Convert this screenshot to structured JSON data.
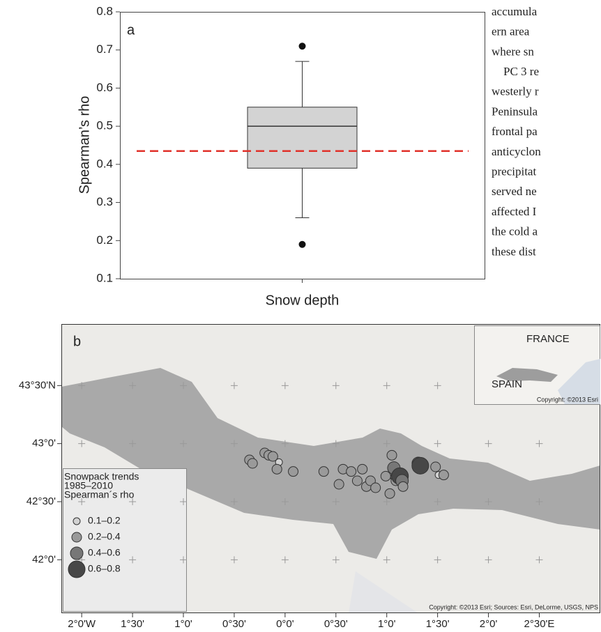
{
  "chart_data": [
    {
      "type": "box",
      "panel_label": "a",
      "ylabel": "Spearman’s rho",
      "categories": [
        "Snow depth"
      ],
      "whisker_low": [
        0.26
      ],
      "q1": [
        0.39
      ],
      "median": [
        0.5
      ],
      "q3": [
        0.55
      ],
      "whisker_high": [
        0.67
      ],
      "outliers": [
        [
          0.71,
          0.19
        ]
      ],
      "reference_line": 0.435,
      "reference_color": "#e0312a",
      "box_color": "#d3d3d3",
      "ylim": [
        0.1,
        0.8
      ],
      "yticks": [
        0.1,
        0.2,
        0.3,
        0.4,
        0.5,
        0.6,
        0.7,
        0.8
      ]
    },
    {
      "type": "map",
      "panel_label": "b",
      "xlim": [
        -2.2,
        3.1
      ],
      "ylim": [
        41.54,
        44.03
      ],
      "xticks": [
        {
          "value": -2,
          "label": "2°0'W"
        },
        {
          "value": -1.5,
          "label": "1°30'"
        },
        {
          "value": -1,
          "label": "1°0'"
        },
        {
          "value": -0.5,
          "label": "0°30'"
        },
        {
          "value": 0,
          "label": "0°0'"
        },
        {
          "value": 0.5,
          "label": "0°30'"
        },
        {
          "value": 1,
          "label": "1°0'"
        },
        {
          "value": 1.5,
          "label": "1°30'"
        },
        {
          "value": 2,
          "label": "2°0'"
        },
        {
          "value": 2.5,
          "label": "2°30'E"
        }
      ],
      "yticks": [
        {
          "value": 43.5,
          "label": "43°30'N"
        },
        {
          "value": 43,
          "label": "43°0'"
        },
        {
          "value": 42.5,
          "label": "42°30'"
        },
        {
          "value": 42,
          "label": "42°0'"
        }
      ],
      "legend_title": [
        "Snowpack trends",
        "1985–2010",
        "Spearman´s rho"
      ],
      "classes": [
        {
          "label": "0.1–0.2",
          "color": "#d2d2d2"
        },
        {
          "label": "0.2–0.4",
          "color": "#9a9a9a"
        },
        {
          "label": "0.4–0.6",
          "color": "#777777"
        },
        {
          "label": "0.6–0.8",
          "color": "#474747"
        }
      ],
      "points": [
        {
          "lon": -0.35,
          "lat": 42.86,
          "class": "0.2–0.4"
        },
        {
          "lon": -0.32,
          "lat": 42.83,
          "class": "0.2–0.4"
        },
        {
          "lon": -0.2,
          "lat": 42.92,
          "class": "0.2–0.4"
        },
        {
          "lon": -0.16,
          "lat": 42.9,
          "class": "0.2–0.4"
        },
        {
          "lon": -0.12,
          "lat": 42.89,
          "class": "0.2–0.4"
        },
        {
          "lon": -0.06,
          "lat": 42.84,
          "class": "0.1–0.2"
        },
        {
          "lon": -0.08,
          "lat": 42.78,
          "class": "0.2–0.4"
        },
        {
          "lon": 0.08,
          "lat": 42.76,
          "class": "0.2–0.4"
        },
        {
          "lon": 0.38,
          "lat": 42.76,
          "class": "0.2–0.4"
        },
        {
          "lon": 0.57,
          "lat": 42.78,
          "class": "0.2–0.4"
        },
        {
          "lon": 0.53,
          "lat": 42.65,
          "class": "0.2–0.4"
        },
        {
          "lon": 0.65,
          "lat": 42.76,
          "class": "0.2–0.4"
        },
        {
          "lon": 0.76,
          "lat": 42.78,
          "class": "0.2–0.4"
        },
        {
          "lon": 0.71,
          "lat": 42.68,
          "class": "0.2–0.4"
        },
        {
          "lon": 0.8,
          "lat": 42.63,
          "class": "0.2–0.4"
        },
        {
          "lon": 0.84,
          "lat": 42.68,
          "class": "0.2–0.4"
        },
        {
          "lon": 0.89,
          "lat": 42.62,
          "class": "0.2–0.4"
        },
        {
          "lon": 0.99,
          "lat": 42.72,
          "class": "0.2–0.4"
        },
        {
          "lon": 1.05,
          "lat": 42.9,
          "class": "0.2–0.4"
        },
        {
          "lon": 1.07,
          "lat": 42.79,
          "class": "0.4–0.6"
        },
        {
          "lon": 1.1,
          "lat": 42.71,
          "class": "0.4–0.6"
        },
        {
          "lon": 1.09,
          "lat": 42.68,
          "class": "0.2–0.4"
        },
        {
          "lon": 1.13,
          "lat": 42.72,
          "class": "0.6–0.8"
        },
        {
          "lon": 1.15,
          "lat": 42.68,
          "class": "0.4–0.6"
        },
        {
          "lon": 1.03,
          "lat": 42.57,
          "class": "0.2–0.4"
        },
        {
          "lon": 1.16,
          "lat": 42.63,
          "class": "0.2–0.4"
        },
        {
          "lon": 1.31,
          "lat": 42.83,
          "class": "0.4–0.6"
        },
        {
          "lon": 1.33,
          "lat": 42.81,
          "class": "0.6–0.8"
        },
        {
          "lon": 1.48,
          "lat": 42.8,
          "class": "0.2–0.4"
        },
        {
          "lon": 1.51,
          "lat": 42.73,
          "class": "0.1–0.2"
        },
        {
          "lon": 1.56,
          "lat": 42.73,
          "class": "0.2–0.4"
        }
      ],
      "inset": {
        "labels": [
          "FRANCE",
          "SPAIN"
        ],
        "copyright": "Copyright: ©2013 Esri"
      },
      "copyright": "Copyright: ©2013 Esri; Sources: Esri, DeLorme, USGS, NPS"
    }
  ],
  "text_column": {
    "lines": [
      "accumula",
      "ern area",
      "where sn",
      "PC 3 re",
      "westerly r",
      "Peninsula",
      "frontal pa",
      "anticyclon",
      "precipitat",
      "served ne",
      "affected I",
      "the cold a",
      "these dist"
    ]
  }
}
